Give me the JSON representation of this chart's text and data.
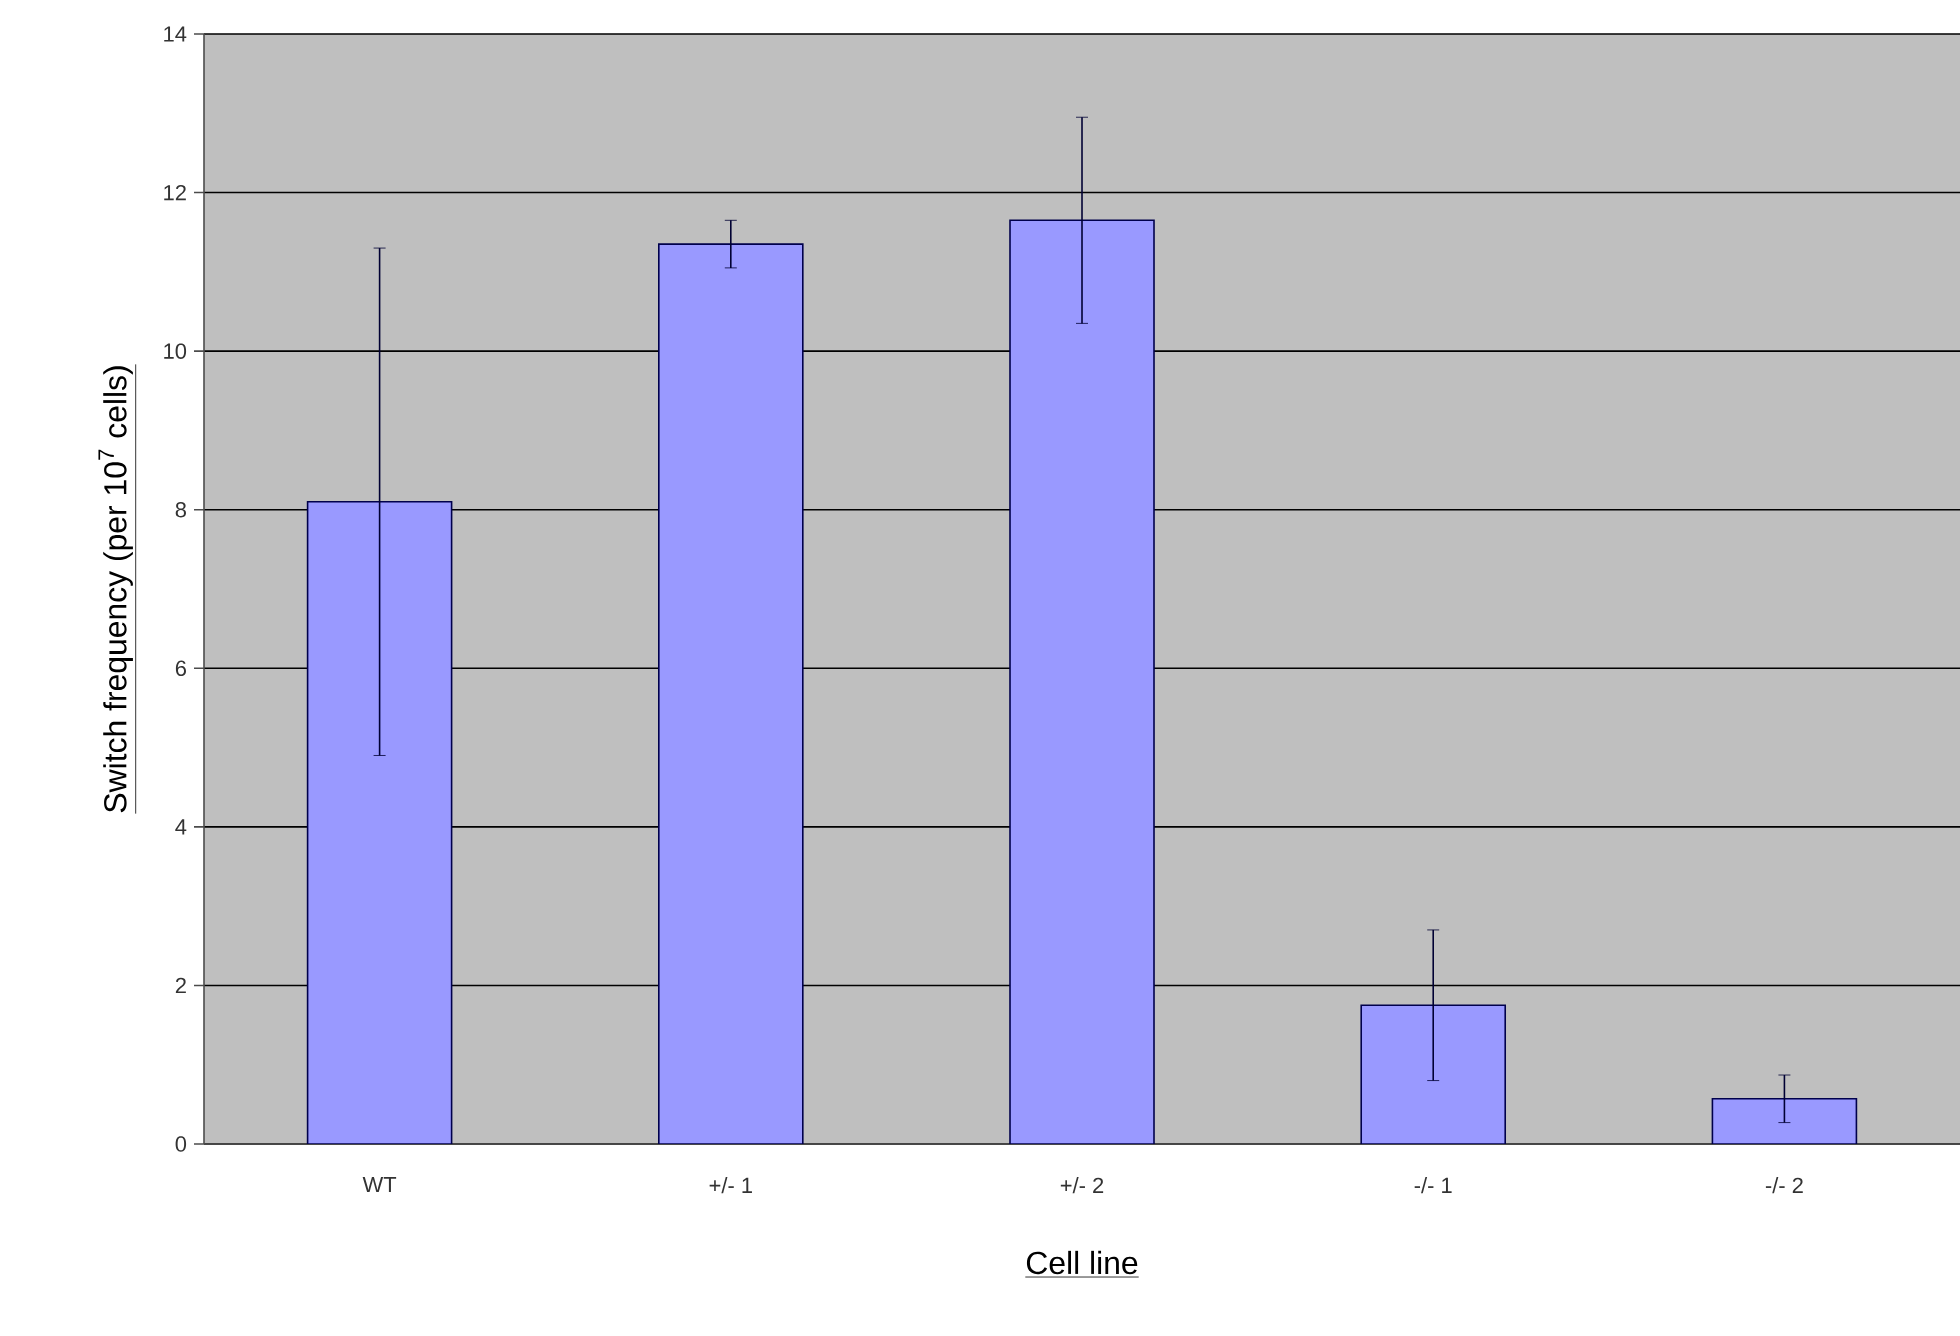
{
  "chart_data": {
    "type": "bar",
    "xlabel": "Cell line",
    "ylabel": "Switch frequency (per 10$^{7}$ cells)",
    "categories": [
      "WT",
      "+/- 1",
      "+/- 2",
      "-/- 1",
      "-/- 2"
    ],
    "values": [
      8.1,
      11.35,
      11.65,
      1.75,
      0.57
    ],
    "errors": [
      3.2,
      0.3,
      1.3,
      0.95,
      0.3
    ],
    "color": "#9999ff",
    "ylim": [
      0,
      14
    ],
    "yticks": [
      0,
      2,
      4,
      6,
      8,
      10,
      12,
      14
    ],
    "grid": "y"
  }
}
